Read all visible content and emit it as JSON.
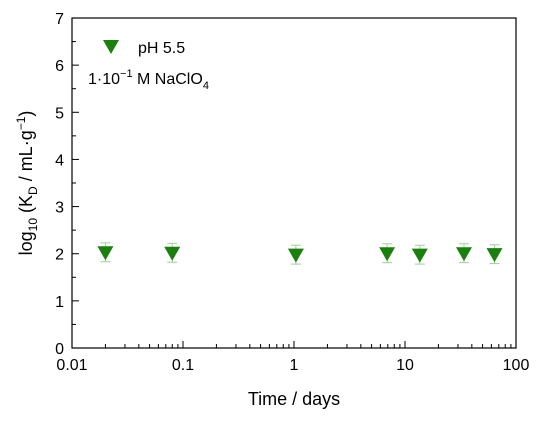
{
  "chart_data": {
    "type": "scatter",
    "xlabel": "Time / days",
    "ylabel": {
      "prefix": "log",
      "prefix_sub": "10",
      "mid": " (K",
      "mid_sub": "D",
      "unit": " / mL·g",
      "unit_sup": "−1",
      "suffix": ")"
    },
    "xscale": "log",
    "xlim": [
      0.01,
      100
    ],
    "ylim": [
      0,
      7
    ],
    "xticks": [
      0.01,
      0.1,
      1,
      10,
      100
    ],
    "xtick_labels": [
      "0.01",
      "0.1",
      "1",
      "10",
      "100"
    ],
    "yticks": [
      0,
      1,
      2,
      3,
      4,
      5,
      6,
      7
    ],
    "ytick_labels": [
      "0",
      "1",
      "2",
      "3",
      "4",
      "5",
      "6",
      "7"
    ],
    "grid": false,
    "legend_position": "top-left",
    "series": [
      {
        "name": "pH 5.5",
        "marker": "triangle-down",
        "color": "#1a7f0e",
        "errorbar_color": "#9fcf9a",
        "x": [
          0.02,
          0.08,
          1.04,
          6.9,
          13.6,
          34,
          64
        ],
        "y": [
          2.03,
          2.02,
          1.98,
          2.01,
          1.98,
          2.01,
          1.99
        ],
        "yerr": [
          0.2,
          0.2,
          0.2,
          0.2,
          0.2,
          0.2,
          0.2
        ]
      }
    ],
    "annotation": {
      "prefix": "1·10",
      "exp": "−1",
      "mid": " M  NaClO",
      "sub": "4"
    }
  }
}
